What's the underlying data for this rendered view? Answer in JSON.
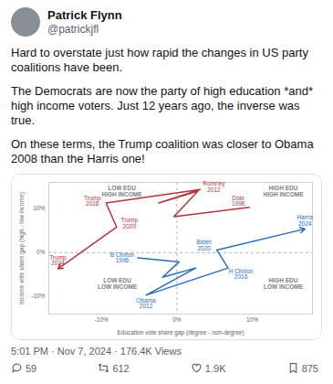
{
  "tweet": {
    "name": "Patrick Flynn",
    "handle": "@patrickjfl",
    "paragraphs": [
      "Hard to overstate just how rapid the changes in US party coalitions have been.",
      "The Democrats are now the party of high education *and* high income voters. Just 12 years ago, the inverse was true.",
      "On these terms, the Trump coalition was closer to Obama 2008 than the Harris one!"
    ],
    "timestamp": "5:01 PM · Nov 7, 2024 · 176.4K Views",
    "stats": [
      "59",
      "612",
      "1.9K",
      "875"
    ]
  },
  "chart_data": {
    "type": "line",
    "xlabel": "Education vote share gap (degree - non-degree)",
    "ylabel": "Income vote share gap (high - low income)",
    "xlim": [
      -17,
      18
    ],
    "ylim": [
      -14,
      16
    ],
    "xticks": [
      {
        "value": -10,
        "label": "-10%"
      },
      {
        "value": 0,
        "label": "0%"
      },
      {
        "value": 10,
        "label": "10%"
      }
    ],
    "yticks": [
      {
        "value": -10,
        "label": "-10%"
      },
      {
        "value": 0,
        "label": "0%"
      },
      {
        "value": 10,
        "label": "10%"
      }
    ],
    "grid": false,
    "quadrant_labels": [
      "LOW EDU\nHIGH INCOME",
      "HIGH EDU\nHIGH INCOME",
      "LOW EDU\nLOW INCOME",
      "HIGH EDU\nLOW INCOME"
    ],
    "series": [
      {
        "color": "#b8333a",
        "marker": "arrow",
        "x": [
          9.6,
          -0.4,
          2.8,
          -2.4,
          3.1,
          -9.4,
          -8.0,
          -15.8
        ],
        "values": [
          10.3,
          8.2,
          14.0,
          11.3,
          14.4,
          11.3,
          5.8,
          -3.7
        ],
        "labels": [
          "Dole\n1996",
          null,
          null,
          null,
          "Romney\n2012",
          "Trump\n2016",
          "Trump\n2020",
          "Trump\n2024"
        ]
      },
      {
        "color": "#2a6ebb",
        "marker": "arrow",
        "x": [
          -5.2,
          0.3,
          -1.9,
          2.5,
          -4.1,
          6.8,
          5.3,
          17.0
        ],
        "values": [
          -1.2,
          -2.1,
          -5.6,
          -3.5,
          -9.7,
          -3.5,
          0.6,
          5.4
        ],
        "labels": [
          "B Clinton\n1996",
          null,
          null,
          null,
          "Obama\n2012",
          "H Clinton\n2016",
          "Biden\n2020",
          "Harris\n2024"
        ]
      }
    ]
  }
}
